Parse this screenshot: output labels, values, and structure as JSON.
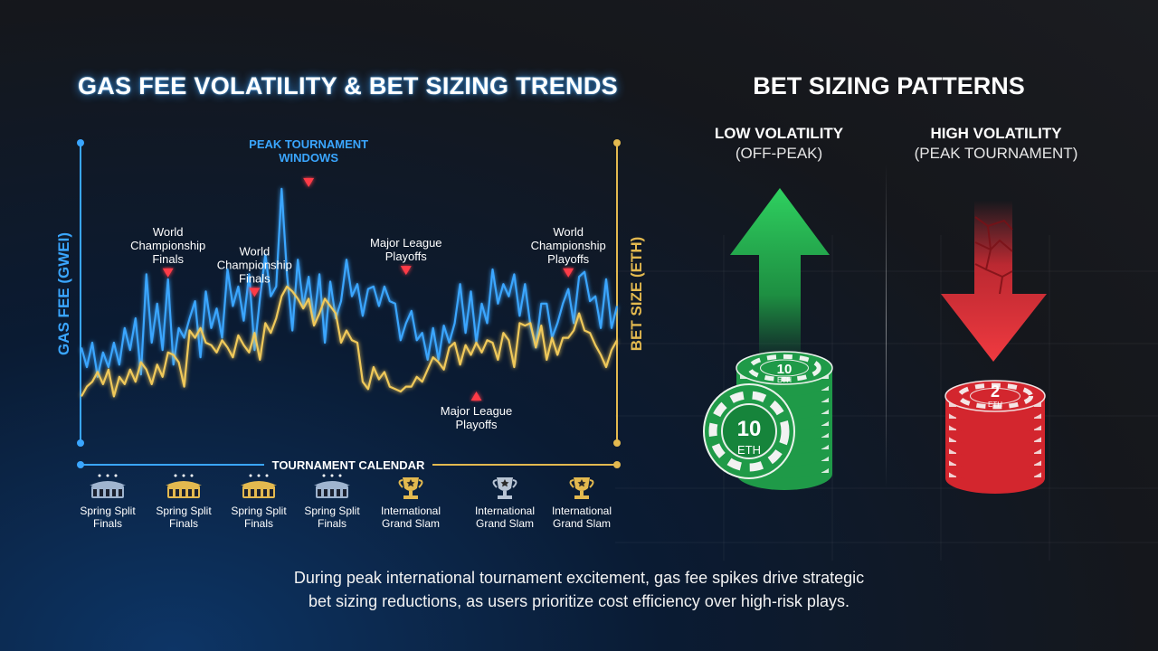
{
  "header": {
    "chart_title": "GAS FEE VOLATILITY & BET SIZING TRENDS",
    "patterns_title": "BET SIZING PATTERNS"
  },
  "chart_data": {
    "type": "line",
    "title": "GAS FEE VOLATILITY & BET SIZING TRENDS",
    "ylabel": "GAS FEE (GWEI)",
    "y2label": "BET SIZE (ETH)",
    "xlabel": "TOURNAMENT CALENDAR",
    "ylim": [
      0,
      100
    ],
    "x": [
      0,
      1,
      2,
      3,
      4,
      5,
      6,
      7,
      8,
      9,
      10,
      11,
      12,
      13,
      14,
      15,
      16,
      17,
      18,
      19,
      20,
      21,
      22,
      23,
      24,
      25,
      26,
      27,
      28,
      29,
      30,
      31,
      32,
      33,
      34,
      35,
      36,
      37,
      38,
      39,
      40,
      41,
      42,
      43,
      44,
      45,
      46,
      47,
      48,
      49,
      50,
      51,
      52,
      53,
      54,
      55,
      56,
      57,
      58,
      59,
      60,
      61,
      62,
      63,
      64,
      65,
      66,
      67,
      68,
      69,
      70,
      71,
      72,
      73,
      74,
      75,
      76,
      77,
      78,
      79,
      80,
      81,
      82,
      83,
      84,
      85,
      86,
      87,
      88,
      89,
      90,
      91,
      92,
      93,
      94,
      95,
      96,
      97,
      98,
      99
    ],
    "series": [
      {
        "name": "",
        "color": "#3aa6ff",
        "axis": "left",
        "values": [
          28,
          20,
          30,
          16,
          26,
          20,
          30,
          21,
          36,
          27,
          40,
          17,
          58,
          30,
          46,
          27,
          56,
          21,
          36,
          32,
          40,
          47,
          24,
          51,
          36,
          44,
          32,
          60,
          45,
          53,
          39,
          58,
          27,
          48,
          66,
          49,
          53,
          93,
          58,
          35,
          64,
          45,
          57,
          39,
          58,
          30,
          55,
          40,
          47,
          64,
          49,
          54,
          41,
          52,
          53,
          45,
          53,
          47,
          46,
          31,
          38,
          43,
          31,
          34,
          23,
          36,
          23,
          37,
          30,
          38,
          54,
          34,
          51,
          30,
          46,
          38,
          60,
          46,
          54,
          49,
          58,
          41,
          54,
          37,
          28,
          46,
          46,
          32,
          38,
          46,
          52,
          38,
          57,
          59,
          47,
          49,
          36,
          56,
          36,
          45
        ]
      },
      {
        "name": "",
        "color": "#f0c95a",
        "axis": "right",
        "values": [
          8,
          12,
          14,
          18,
          13,
          19,
          8,
          16,
          13,
          19,
          14,
          22,
          19,
          13,
          21,
          16,
          26,
          25,
          22,
          12,
          35,
          32,
          36,
          30,
          29,
          26,
          31,
          28,
          24,
          33,
          29,
          26,
          34,
          23,
          38,
          34,
          40,
          49,
          53,
          51,
          48,
          44,
          48,
          37,
          42,
          48,
          45,
          42,
          30,
          35,
          31,
          30,
          14,
          11,
          20,
          15,
          18,
          12,
          11,
          10,
          12,
          12,
          16,
          14,
          19,
          24,
          22,
          19,
          28,
          30,
          21,
          29,
          25,
          30,
          26,
          31,
          30,
          23,
          34,
          31,
          20,
          38,
          37,
          38,
          28,
          37,
          23,
          32,
          25,
          32,
          32,
          35,
          42,
          35,
          34,
          29,
          25,
          20,
          27,
          31
        ]
      }
    ],
    "annotations": [
      {
        "lines": [
          "World",
          "Championship",
          "Finals"
        ],
        "x": 16,
        "y": 56
      },
      {
        "lines": [
          "World",
          "Championship",
          "Finals"
        ],
        "x": 32,
        "y": 48
      },
      {
        "lines": [
          "PEAK TOURNAMENT",
          "WINDOWS"
        ],
        "x": 42,
        "y": 93
      },
      {
        "lines": [
          "Major League",
          "Playoffs"
        ],
        "x": 60,
        "y": 57
      },
      {
        "lines": [
          "Major League",
          "Playoffs"
        ],
        "x": 73,
        "y": 10
      },
      {
        "lines": [
          "World",
          "Championship",
          "Playoffs"
        ],
        "x": 90,
        "y": 56
      }
    ],
    "calendar": [
      {
        "icon": "stadium-icon",
        "color": "#9fb4cf",
        "lines": [
          "Spring Split",
          "Finals"
        ]
      },
      {
        "icon": "stadium-icon",
        "color": "#e3b94f",
        "lines": [
          "Spring Split",
          "Finals"
        ]
      },
      {
        "icon": "stadium-icon",
        "color": "#e3b94f",
        "lines": [
          "Spring Split",
          "Finals"
        ]
      },
      {
        "icon": "stadium-icon",
        "color": "#9fb4cf",
        "lines": [
          "Spring Split",
          "Finals"
        ]
      },
      {
        "icon": "trophy-icon",
        "color": "#e3b94f",
        "lines": [
          "International",
          "Grand Slam"
        ]
      },
      {
        "icon": "trophy-icon",
        "color": "#b8c4d4",
        "lines": [
          "International",
          "Grand Slam"
        ]
      },
      {
        "icon": "trophy-icon",
        "color": "#e3b94f",
        "lines": [
          "International",
          "Grand Slam"
        ]
      }
    ]
  },
  "patterns": {
    "low": {
      "title": "LOW VOLATILITY",
      "subtitle": "(OFF-PEAK)",
      "chip_label": "10",
      "chip_unit": "ETH",
      "arrow": "up-arrow-icon",
      "color": "#2dbb57"
    },
    "high": {
      "title": "HIGH VOLATILITY",
      "subtitle": "(PEAK TOURNAMENT)",
      "chip_label": "2",
      "chip_unit": "ETH",
      "arrow": "down-arrow-icon",
      "color": "#e0333b"
    }
  },
  "caption": {
    "line1": "During peak international tournament excitement, gas fee spikes drive strategic",
    "line2": "bet sizing reductions, as users prioritize cost efficiency over high-risk plays."
  }
}
